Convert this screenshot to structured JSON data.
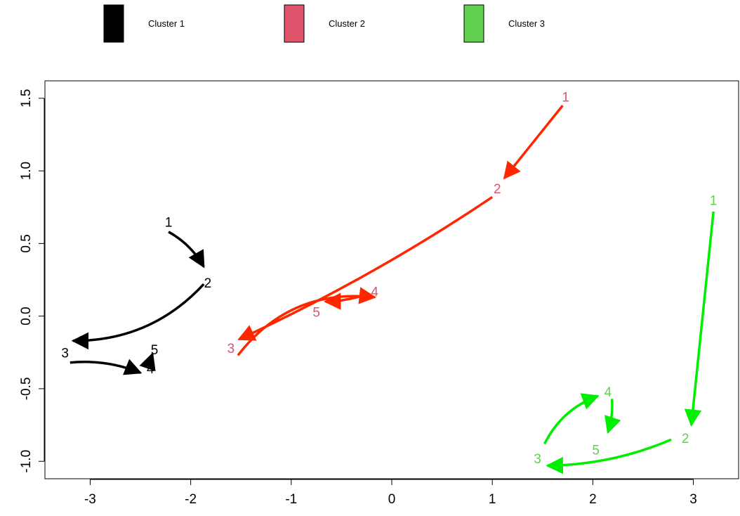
{
  "chart_data": {
    "type": "scatter",
    "title": "",
    "xlabel": "",
    "ylabel": "",
    "xlim": [
      -3.45,
      3.45
    ],
    "ylim": [
      -1.12,
      1.62
    ],
    "x_ticks": [
      -3,
      -2,
      -1,
      0,
      1,
      2,
      3
    ],
    "y_ticks": [
      -1.0,
      -0.5,
      0.0,
      0.5,
      1.0,
      1.5
    ],
    "x_tick_labels": [
      "-3",
      "-2",
      "-1",
      "0",
      "1",
      "2",
      "3"
    ],
    "y_tick_labels": [
      "-1.0",
      "-0.5",
      "0.0",
      "0.5",
      "1.0",
      "1.5"
    ],
    "grid": false,
    "legend_placement": "top",
    "legend": [
      {
        "label": "Cluster 1",
        "color": "#000000"
      },
      {
        "label": "Cluster 2",
        "color": "#DF536B"
      },
      {
        "label": "Cluster 3",
        "color": "#61D04F"
      }
    ],
    "series": [
      {
        "label_color": "#000000",
        "arrow_color": "#000000",
        "points": [
          {
            "label": "1",
            "x": -2.22,
            "y": 0.65
          },
          {
            "label": "2",
            "x": -1.83,
            "y": 0.23
          },
          {
            "label": "3",
            "x": -3.25,
            "y": -0.25
          },
          {
            "label": "4",
            "x": -2.4,
            "y": -0.36
          },
          {
            "label": "5",
            "x": -2.36,
            "y": -0.23
          }
        ],
        "arrows": [
          {
            "from": [
              -2.22,
              0.58
            ],
            "to": [
              -1.87,
              0.34
            ],
            "bend": 0.14
          },
          {
            "from": [
              -1.87,
              0.22
            ],
            "to": [
              -3.17,
              -0.17
            ],
            "bend": 0.22
          },
          {
            "from": [
              -3.2,
              -0.32
            ],
            "to": [
              -2.5,
              -0.39
            ],
            "bend": 0.12
          },
          {
            "from": [
              -2.41,
              -0.35
            ],
            "to": [
              -2.38,
              -0.26
            ],
            "bend": 0.05
          }
        ]
      },
      {
        "label_color": "#DF536B",
        "arrow_color": "#FF2600",
        "points": [
          {
            "label": "1",
            "x": 1.73,
            "y": 1.51
          },
          {
            "label": "2",
            "x": 1.05,
            "y": 0.88
          },
          {
            "label": "3",
            "x": -1.6,
            "y": -0.22
          },
          {
            "label": "4",
            "x": -0.17,
            "y": 0.17
          },
          {
            "label": "5",
            "x": -0.75,
            "y": 0.03
          }
        ],
        "arrows": [
          {
            "from": [
              1.7,
              1.45
            ],
            "to": [
              1.12,
              0.95
            ],
            "bend": 0.0
          },
          {
            "from": [
              1.0,
              0.82
            ],
            "to": [
              -1.52,
              -0.16
            ],
            "bend": 0.04
          },
          {
            "from": [
              -1.53,
              -0.27
            ],
            "to": [
              -0.17,
              0.13
            ],
            "bend": 0.28
          },
          {
            "from": [
              -0.25,
              0.15
            ],
            "to": [
              -0.66,
              0.1
            ],
            "bend": 0.08
          }
        ]
      },
      {
        "label_color": "#61D04F",
        "arrow_color": "#00EE00",
        "points": [
          {
            "label": "1",
            "x": 3.2,
            "y": 0.8
          },
          {
            "label": "2",
            "x": 2.92,
            "y": -0.84
          },
          {
            "label": "3",
            "x": 1.45,
            "y": -0.98
          },
          {
            "label": "4",
            "x": 2.15,
            "y": -0.52
          },
          {
            "label": "5",
            "x": 2.03,
            "y": -0.92
          }
        ],
        "arrows": [
          {
            "from": [
              3.2,
              0.72
            ],
            "to": [
              2.98,
              -0.75
            ],
            "bend": 0.0
          },
          {
            "from": [
              2.78,
              -0.85
            ],
            "to": [
              1.55,
              -1.03
            ],
            "bend": 0.1
          },
          {
            "from": [
              1.52,
              -0.88
            ],
            "to": [
              2.05,
              -0.55
            ],
            "bend": 0.2
          },
          {
            "from": [
              2.19,
              -0.57
            ],
            "to": [
              2.15,
              -0.8
            ],
            "bend": 0.1
          }
        ]
      }
    ]
  }
}
